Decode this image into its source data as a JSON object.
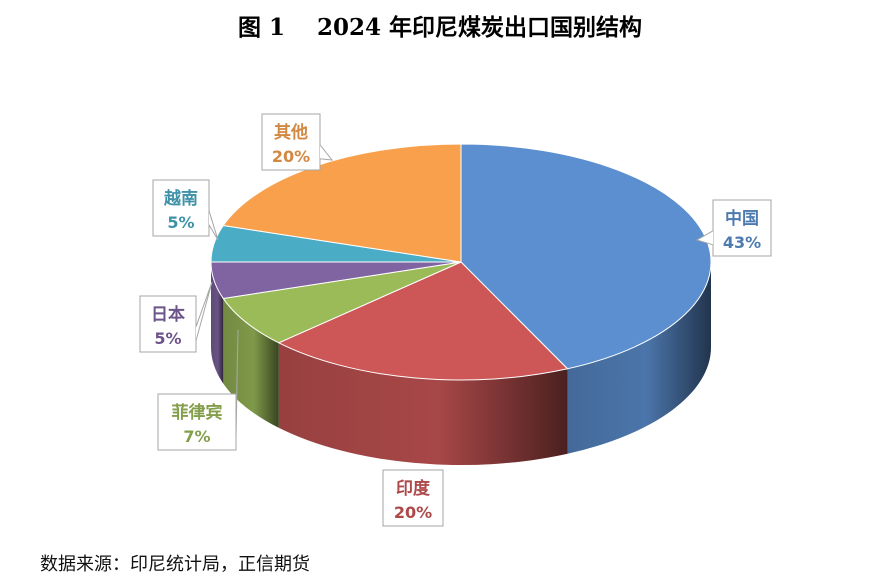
{
  "chart_data": {
    "type": "pie",
    "title": "图 1    2024 年印尼煤炭出口国别结构",
    "slices": [
      {
        "name": "中国",
        "value": 43,
        "label": "43%",
        "color": "#5b8fcf"
      },
      {
        "name": "印度",
        "value": 20,
        "label": "20%",
        "color": "#cd5656"
      },
      {
        "name": "菲律宾",
        "value": 7,
        "label": "7%",
        "color": "#9bbb59"
      },
      {
        "name": "日本",
        "value": 5,
        "label": "5%",
        "color": "#8064a2"
      },
      {
        "name": "越南",
        "value": 5,
        "label": "5%",
        "color": "#4bacc6"
      },
      {
        "name": "其他",
        "value": 20,
        "label": "20%",
        "color": "#f8a04c"
      }
    ],
    "source": "数据来源：印尼统计局，正信期货"
  }
}
